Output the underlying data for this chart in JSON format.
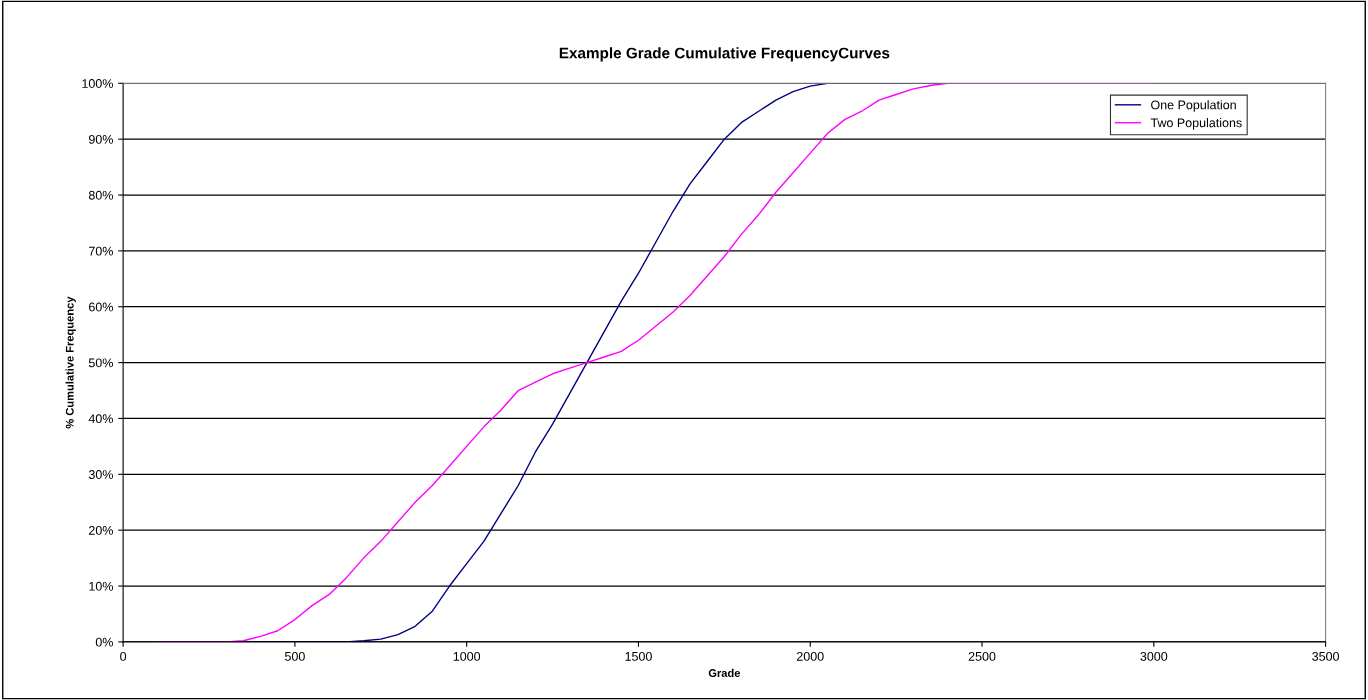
{
  "chart_data": {
    "type": "line",
    "title": "Example Grade Cumulative FrequencyCurves",
    "xlabel": "Grade",
    "ylabel": "% Cumulative Frequency",
    "series": [
      {
        "name": "One Population",
        "color": "#000080",
        "x": [
          100,
          650,
          700,
          750,
          800,
          850,
          900,
          950,
          1000,
          1050,
          1100,
          1150,
          1200,
          1250,
          1300,
          1350,
          1400,
          1450,
          1500,
          1550,
          1600,
          1650,
          1700,
          1750,
          1800,
          1850,
          1900,
          1950,
          2000,
          2050,
          3000
        ],
        "values": [
          0,
          0,
          0.2,
          0.5,
          1.3,
          2.8,
          5.5,
          10,
          14,
          18,
          23,
          28,
          34,
          39,
          44.5,
          50,
          55.5,
          61,
          66,
          71.5,
          77,
          82,
          86,
          90,
          93,
          95,
          97,
          98.5,
          99.5,
          100,
          100
        ]
      },
      {
        "name": "Two Populations",
        "color": "#ff00ff",
        "x": [
          100,
          300,
          350,
          400,
          450,
          500,
          550,
          600,
          650,
          700,
          750,
          800,
          850,
          900,
          950,
          1000,
          1050,
          1100,
          1150,
          1200,
          1250,
          1300,
          1350,
          1400,
          1450,
          1500,
          1550,
          1600,
          1650,
          1700,
          1750,
          1800,
          1850,
          1900,
          1950,
          2000,
          2050,
          2100,
          2150,
          2200,
          2250,
          2300,
          2350,
          2400,
          3000
        ],
        "values": [
          0,
          0,
          0.2,
          1,
          2,
          4,
          6.5,
          8.5,
          11.5,
          15,
          18,
          21.5,
          25,
          28,
          31.5,
          35,
          38.5,
          41.5,
          45,
          46.5,
          48,
          49,
          50,
          51,
          52,
          54,
          56.5,
          59,
          62,
          65.5,
          69,
          73,
          76.5,
          80.5,
          84,
          87.5,
          91,
          93.5,
          95,
          97,
          98,
          99,
          99.6,
          100,
          100
        ]
      }
    ],
    "xlim": [
      0,
      3500
    ],
    "xticks": [
      0,
      500,
      1000,
      1500,
      2000,
      2500,
      3000,
      3500
    ],
    "ylim": [
      0,
      100
    ],
    "yticks": [
      {
        "value": 0,
        "label": "0%"
      },
      {
        "value": 10,
        "label": "10%"
      },
      {
        "value": 20,
        "label": "20%"
      },
      {
        "value": 30,
        "label": "30%"
      },
      {
        "value": 40,
        "label": "40%"
      },
      {
        "value": 50,
        "label": "50%"
      },
      {
        "value": 60,
        "label": "60%"
      },
      {
        "value": 70,
        "label": "70%"
      },
      {
        "value": 80,
        "label": "80%"
      },
      {
        "value": 90,
        "label": "90%"
      },
      {
        "value": 100,
        "label": "100%"
      }
    ],
    "grid": "y",
    "legend": "top right",
    "marker": "none",
    "line_style": "solid"
  }
}
